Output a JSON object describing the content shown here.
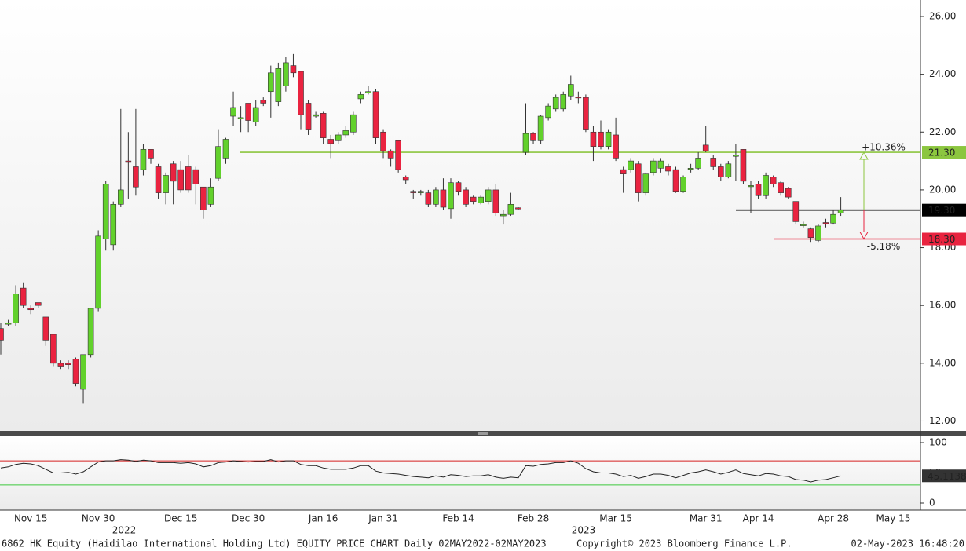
{
  "chart_data": {
    "type": "candlestick",
    "up_color": "#62d12c",
    "down_color": "#ea2340",
    "outline_color": "#333333",
    "categories": [
      null,
      null,
      null,
      null,
      "Nov 15",
      null,
      null,
      null,
      null,
      null,
      null,
      null,
      null,
      "Nov 30",
      null,
      null,
      null,
      null,
      null,
      null,
      null,
      null,
      null,
      null,
      "Dec 15",
      null,
      null,
      null,
      null,
      null,
      null,
      null,
      null,
      "Dec 30",
      null,
      null,
      null,
      null,
      null,
      null,
      null,
      null,
      null,
      "Jan 16",
      null,
      null,
      null,
      null,
      null,
      null,
      null,
      "Jan 31",
      null,
      null,
      null,
      null,
      null,
      null,
      null,
      null,
      null,
      "Feb 14",
      null,
      null,
      null,
      null,
      null,
      null,
      null,
      null,
      null,
      "Feb 28",
      null,
      null,
      null,
      null,
      null,
      null,
      null,
      null,
      null,
      null,
      "Mar 15",
      null,
      null,
      null,
      null,
      null,
      null,
      null,
      null,
      null,
      null,
      null,
      "Mar 31",
      null,
      null,
      null,
      null,
      null,
      null,
      "Apr 14",
      null,
      null,
      null,
      null,
      null,
      null,
      null,
      null,
      null,
      "Apr 28",
      null,
      null,
      null,
      null,
      null,
      null,
      null,
      "May 15",
      null,
      null,
      null
    ],
    "x_group_labels": [
      "2022",
      "2023"
    ],
    "open": [
      15.2,
      15.35,
      15.4,
      16.6,
      15.9,
      16.1,
      15.6,
      15.0,
      14.0,
      14.0,
      14.15,
      13.1,
      14.3,
      15.9,
      18.3,
      18.1,
      19.5,
      21.0,
      20.8,
      20.7,
      21.4,
      20.8,
      19.9,
      20.9,
      20.7,
      20.8,
      20.7,
      20.1,
      19.5,
      20.4,
      21.1,
      22.55,
      22.45,
      23.0,
      22.35,
      23.1,
      23.4,
      23.05,
      23.6,
      24.3,
      24.1,
      23.0,
      22.55,
      22.65,
      21.75,
      21.7,
      21.9,
      22.0,
      23.15,
      23.35,
      23.4,
      22.0,
      21.35,
      21.7,
      20.45,
      19.95,
      19.9,
      19.9,
      19.5,
      20.0,
      19.35,
      20.25,
      20.0,
      19.75,
      19.55,
      19.6,
      20.0,
      19.1,
      19.15,
      19.38,
      21.3,
      21.95,
      21.7,
      22.5,
      22.8,
      22.8,
      23.25,
      23.22,
      23.2,
      22.0,
      22.0,
      21.5,
      21.9,
      20.7,
      20.7,
      20.9,
      19.9,
      20.6,
      20.75,
      20.8,
      20.7,
      19.95,
      20.72,
      20.75,
      21.55,
      21.1,
      20.8,
      20.45,
      21.18,
      21.4,
      20.13,
      20.2,
      19.8,
      20.45,
      20.25,
      20.05,
      19.6,
      18.78,
      18.65,
      18.25,
      18.87,
      18.85,
      19.2,
      null,
      null,
      null,
      null,
      null,
      null,
      null,
      null,
      null,
      null
    ],
    "high": [
      15.4,
      15.5,
      16.7,
      16.8,
      16.0,
      16.1,
      15.6,
      15.0,
      14.1,
      14.1,
      14.2,
      14.3,
      15.9,
      18.6,
      20.3,
      19.6,
      22.8,
      22.0,
      22.8,
      21.6,
      21.4,
      20.9,
      20.6,
      21.0,
      21.0,
      21.2,
      20.8,
      20.1,
      20.4,
      22.1,
      21.8,
      23.4,
      22.9,
      23.0,
      23.1,
      23.2,
      24.3,
      24.4,
      24.6,
      24.7,
      24.1,
      23.1,
      22.7,
      22.7,
      21.9,
      22.0,
      22.2,
      22.7,
      23.4,
      23.6,
      23.5,
      22.1,
      21.4,
      21.7,
      20.5,
      20.0,
      20.0,
      20.0,
      20.1,
      20.4,
      20.4,
      20.3,
      20.1,
      19.8,
      19.8,
      20.1,
      20.2,
      19.3,
      19.9,
      19.4,
      23.0,
      22.0,
      22.6,
      23.0,
      23.3,
      23.4,
      23.95,
      23.4,
      23.3,
      22.2,
      22.4,
      22.1,
      22.5,
      20.8,
      21.1,
      21.0,
      20.6,
      21.1,
      21.1,
      20.9,
      20.8,
      20.5,
      20.9,
      21.3,
      22.2,
      21.2,
      20.9,
      21.0,
      21.6,
      21.4,
      20.3,
      20.3,
      20.6,
      20.5,
      20.3,
      20.1,
      19.6,
      18.9,
      18.7,
      18.8,
      19.0,
      19.3,
      19.75,
      null,
      null,
      null,
      null,
      null,
      null,
      null,
      null,
      null,
      null
    ],
    "low": [
      14.3,
      15.3,
      15.3,
      15.9,
      15.7,
      15.9,
      14.6,
      13.9,
      13.8,
      13.8,
      13.2,
      12.6,
      14.2,
      15.8,
      17.9,
      17.9,
      19.4,
      19.7,
      19.8,
      20.5,
      20.9,
      19.7,
      19.5,
      19.5,
      19.9,
      19.9,
      19.5,
      19.0,
      19.4,
      20.3,
      20.9,
      22.2,
      22.0,
      22.0,
      22.2,
      22.9,
      22.5,
      22.9,
      23.4,
      23.9,
      22.1,
      21.9,
      22.5,
      21.6,
      21.1,
      21.6,
      21.8,
      21.9,
      23.0,
      23.3,
      21.6,
      21.1,
      20.8,
      20.6,
      20.2,
      19.7,
      19.8,
      19.4,
      19.4,
      19.3,
      19.0,
      19.8,
      19.4,
      19.5,
      19.5,
      19.5,
      19.1,
      18.8,
      19.1,
      19.3,
      21.2,
      21.6,
      21.6,
      22.4,
      22.7,
      22.7,
      23.1,
      23.0,
      22.0,
      21.0,
      21.4,
      21.4,
      21.0,
      19.9,
      20.6,
      19.6,
      19.8,
      20.5,
      20.6,
      20.5,
      19.9,
      19.9,
      20.6,
      20.7,
      21.3,
      20.7,
      20.3,
      20.4,
      20.3,
      20.2,
      19.2,
      19.7,
      19.7,
      20.1,
      19.8,
      19.7,
      18.8,
      18.7,
      18.2,
      18.2,
      18.7,
      18.8,
      19.1,
      null,
      null,
      null,
      null,
      null,
      null,
      null,
      null,
      null,
      null
    ],
    "close": [
      14.8,
      15.4,
      16.4,
      16.0,
      15.85,
      16.0,
      14.8,
      14.0,
      13.9,
      13.95,
      13.3,
      14.3,
      15.9,
      18.4,
      20.2,
      19.5,
      20.0,
      20.95,
      20.1,
      21.4,
      21.1,
      19.9,
      20.5,
      20.3,
      20.0,
      20.0,
      20.2,
      19.3,
      20.1,
      21.5,
      21.75,
      22.85,
      22.5,
      22.4,
      22.85,
      23.0,
      24.05,
      24.2,
      24.4,
      24.05,
      22.6,
      22.1,
      22.6,
      21.8,
      21.6,
      21.9,
      22.05,
      22.6,
      23.3,
      23.4,
      21.8,
      21.35,
      21.1,
      20.7,
      20.35,
      19.9,
      19.95,
      19.5,
      20.0,
      19.4,
      20.25,
      19.95,
      19.5,
      19.6,
      19.75,
      20.0,
      19.2,
      19.15,
      19.5,
      19.35,
      21.95,
      21.7,
      22.55,
      22.9,
      23.2,
      23.3,
      23.65,
      23.2,
      22.1,
      21.5,
      21.5,
      22.0,
      21.1,
      20.55,
      21.0,
      19.9,
      20.55,
      21.0,
      21.0,
      20.65,
      19.95,
      20.45,
      20.75,
      21.1,
      21.35,
      20.8,
      20.45,
      20.9,
      21.2,
      20.3,
      20.15,
      19.8,
      20.5,
      20.2,
      19.9,
      19.75,
      18.9,
      18.8,
      18.35,
      18.75,
      18.85,
      19.15,
      19.3,
      null,
      null,
      null,
      null,
      null,
      null,
      null,
      null,
      null,
      null
    ],
    "ylim": [
      11.66,
      26.57
    ],
    "yticks": [
      {
        "value": 12,
        "label": "12.00"
      },
      {
        "value": 14,
        "label": "14.00"
      },
      {
        "value": 16,
        "label": "16.00"
      },
      {
        "value": 18,
        "label": "18.00"
      },
      {
        "value": 20,
        "label": "20.00"
      },
      {
        "value": 22,
        "label": "22.00"
      },
      {
        "value": 24,
        "label": "24.00"
      },
      {
        "value": 26,
        "label": "26.00"
      }
    ],
    "levels": [
      {
        "value": 21.3,
        "label": "21.30",
        "color": "#8cc63f",
        "text_color": "#111111",
        "change": "+10.36%"
      },
      {
        "value": 19.3,
        "label": "19.30",
        "color": "#000000",
        "text_color": "#ffffff"
      },
      {
        "value": 18.3,
        "label": "18.30",
        "color": "#e8233f",
        "text_color": "#ffffff",
        "change": "-5.18%"
      }
    ],
    "lower_panel": {
      "type": "line",
      "color": "#222222",
      "values": [
        58,
        60,
        64,
        66,
        65,
        62,
        56,
        50,
        50,
        51,
        48,
        52,
        60,
        68,
        70,
        70,
        72,
        71,
        69,
        71,
        70,
        67,
        67,
        67,
        66,
        67,
        65,
        60,
        62,
        67,
        68,
        70,
        69,
        68,
        69,
        69,
        72,
        68,
        70,
        70,
        64,
        62,
        62,
        58,
        56,
        56,
        56,
        58,
        62,
        62,
        53,
        50,
        49,
        48,
        46,
        44,
        43,
        42,
        45,
        43,
        47,
        46,
        44,
        45,
        45,
        47,
        43,
        41,
        43,
        42,
        62,
        61,
        64,
        65,
        67,
        67,
        70,
        66,
        57,
        52,
        50,
        50,
        48,
        44,
        46,
        41,
        44,
        48,
        48,
        46,
        42,
        46,
        50,
        52,
        55,
        52,
        48,
        51,
        55,
        49,
        47,
        45,
        49,
        48,
        45,
        44,
        39,
        38,
        35,
        38,
        39,
        42,
        45.1138,
        null,
        null,
        null,
        null,
        null,
        null,
        null,
        null,
        null,
        null
      ],
      "ylim": [
        -11.7,
        110.4
      ],
      "yticks": [
        0,
        50,
        100
      ],
      "levels": [
        {
          "value": 70,
          "color": "#d42020"
        },
        {
          "value": 30,
          "color": "#3cc83c"
        }
      ],
      "tag_color": "#333333"
    }
  },
  "footer": {
    "left": "6862 HK Equity (Haidilao International Holding Ltd) EQUITY PRICE CHART  Daily 02MAY2022-02MAY2023",
    "center": "Copyright© 2023 Bloomberg Finance L.P.",
    "right": "02-May-2023 16:48:20"
  }
}
